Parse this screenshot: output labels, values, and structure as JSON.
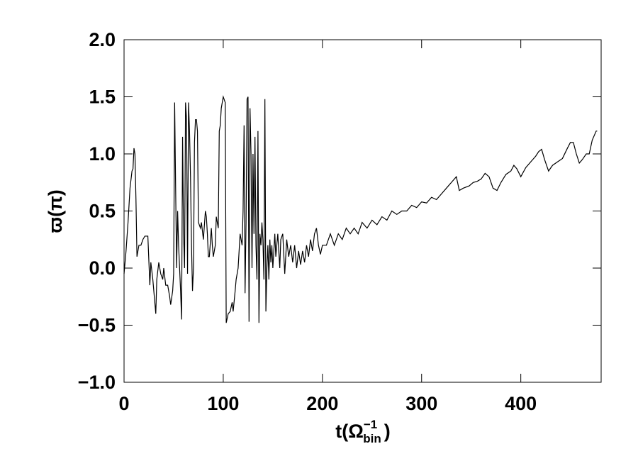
{
  "chart_data": {
    "type": "line",
    "ylabel": "ϖ(π)",
    "xlabel": {
      "base": "t(Ω",
      "sup": "−1",
      "sub": "bin",
      "close": ")"
    },
    "xlim": [
      0,
      481
    ],
    "ylim": [
      -1,
      2
    ],
    "xticks": [
      0,
      100,
      200,
      300,
      400
    ],
    "yticks": [
      {
        "value": -1,
        "label": "−1.0"
      },
      {
        "value": -0.5,
        "label": "−0.5"
      },
      {
        "value": 0,
        "label": "0.0"
      },
      {
        "value": 0.5,
        "label": "0.5"
      },
      {
        "value": 1,
        "label": "1.0"
      },
      {
        "value": 1.5,
        "label": "1.5"
      },
      {
        "value": 2,
        "label": "2.0"
      }
    ],
    "color": "#000000",
    "x": [
      0,
      2,
      4,
      6,
      8,
      9,
      10,
      11,
      12,
      13,
      15,
      17,
      19,
      21,
      24,
      26,
      27,
      29,
      31,
      32,
      33,
      35,
      37,
      39,
      40,
      42,
      44,
      46,
      47,
      49,
      50,
      51,
      52,
      53,
      54,
      55,
      57,
      58,
      59,
      60,
      61,
      62,
      63,
      64,
      65,
      66,
      67,
      68,
      69,
      70,
      71,
      72,
      73,
      74,
      75,
      77,
      78,
      80,
      82,
      83,
      84,
      85,
      86,
      88,
      89,
      90,
      92,
      93,
      95,
      96,
      97,
      98,
      100,
      102,
      103,
      105,
      107,
      109,
      110,
      112,
      113,
      115,
      117,
      119,
      120,
      121,
      122,
      123,
      124,
      125,
      126,
      127,
      128,
      129,
      130,
      131,
      132,
      133,
      134,
      135,
      136,
      137,
      138,
      139,
      140,
      141,
      142,
      143,
      144,
      145,
      146,
      147,
      148,
      149,
      150,
      152,
      153,
      155,
      157,
      158,
      160,
      162,
      164,
      166,
      168,
      170,
      172,
      174,
      176,
      178,
      180,
      182,
      184,
      186,
      188,
      190,
      192,
      194,
      196,
      198,
      200,
      204,
      208,
      212,
      216,
      220,
      224,
      228,
      232,
      236,
      240,
      245,
      250,
      255,
      260,
      265,
      270,
      275,
      280,
      285,
      290,
      295,
      300,
      305,
      310,
      315,
      320,
      325,
      330,
      335,
      338,
      342,
      348,
      352,
      356,
      360,
      364,
      368,
      372,
      376,
      380,
      385,
      390,
      393,
      396,
      400,
      405,
      410,
      415,
      418,
      421,
      424,
      428,
      432,
      437,
      442,
      447,
      450,
      453,
      456,
      459,
      462,
      466,
      469,
      472,
      476,
      477
    ],
    "values": [
      -0.05,
      0.15,
      0.4,
      0.7,
      0.85,
      0.87,
      1.05,
      1.0,
      0.6,
      0.1,
      0.2,
      0.2,
      0.25,
      0.28,
      0.28,
      -0.15,
      0.05,
      -0.1,
      -0.3,
      -0.4,
      -0.1,
      0.05,
      -0.05,
      -0.1,
      0.0,
      -0.15,
      -0.15,
      -0.25,
      -0.32,
      -0.2,
      -0.05,
      1.45,
      0.7,
      0.0,
      0.5,
      0.2,
      -0.2,
      -0.45,
      1.15,
      0.3,
      0.0,
      1.45,
      1.3,
      -0.05,
      1.45,
      1.2,
      0.8,
      0.2,
      -0.2,
      0.0,
      1.1,
      1.3,
      1.3,
      1.2,
      0.4,
      0.35,
      0.4,
      0.25,
      0.5,
      0.45,
      0.3,
      0.1,
      0.1,
      0.35,
      0.2,
      0.1,
      0.2,
      0.45,
      0.35,
      1.2,
      1.25,
      1.4,
      1.5,
      1.45,
      -0.48,
      -0.4,
      -0.38,
      -0.3,
      -0.38,
      -0.2,
      -0.1,
      0.0,
      0.3,
      0.2,
      0.5,
      1.25,
      -0.22,
      0.4,
      1.48,
      1.5,
      -0.47,
      1.4,
      1.0,
      0.0,
      1.0,
      0.3,
      1.15,
      0.2,
      -0.1,
      1.2,
      -0.48,
      0.3,
      0.2,
      0.4,
      0.25,
      -0.1,
      1.48,
      -0.38,
      0.0,
      0.2,
      -0.1,
      0.25,
      0.05,
      0.2,
      0.0,
      0.3,
      0.1,
      0.3,
      0.0,
      0.25,
      0.3,
      -0.05,
      0.25,
      0.1,
      0.2,
      0.05,
      0.2,
      0.0,
      0.15,
      0.03,
      0.15,
      0.05,
      0.2,
      0.1,
      0.25,
      0.15,
      0.3,
      0.35,
      0.2,
      0.12,
      0.2,
      0.2,
      0.3,
      0.2,
      0.3,
      0.25,
      0.35,
      0.3,
      0.35,
      0.3,
      0.4,
      0.35,
      0.42,
      0.38,
      0.45,
      0.42,
      0.5,
      0.47,
      0.5,
      0.5,
      0.55,
      0.53,
      0.58,
      0.57,
      0.62,
      0.6,
      0.65,
      0.7,
      0.75,
      0.8,
      0.68,
      0.7,
      0.72,
      0.75,
      0.76,
      0.78,
      0.83,
      0.8,
      0.7,
      0.68,
      0.75,
      0.82,
      0.85,
      0.9,
      0.87,
      0.8,
      0.88,
      0.93,
      0.98,
      1.02,
      1.04,
      0.95,
      0.85,
      0.9,
      0.93,
      0.96,
      1.05,
      1.1,
      1.1,
      1.0,
      0.92,
      0.95,
      1.0,
      1.0,
      1.12,
      1.2,
      1.2
    ]
  }
}
